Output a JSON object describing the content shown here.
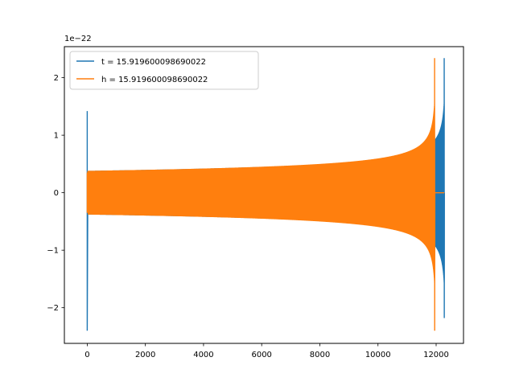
{
  "chart_data": {
    "type": "line",
    "title": "",
    "xlabel": "",
    "ylabel": "",
    "xlim": [
      -786,
      12941
    ],
    "ylim": [
      -2.62,
      2.54
    ],
    "y_offset_label": "1e−22",
    "grid": false,
    "legend_position": "upper-left",
    "x_ticks": [
      0,
      2000,
      4000,
      6000,
      8000,
      10000,
      12000
    ],
    "x_tick_labels": [
      "0",
      "2000",
      "4000",
      "6000",
      "8000",
      "10000",
      "12000"
    ],
    "y_ticks": [
      -2,
      -1,
      0,
      1,
      2
    ],
    "y_tick_labels": [
      "−2",
      "−1",
      "0",
      "1",
      "2"
    ],
    "series": [
      {
        "name": "t = 15.919600098690022",
        "color": "#1f77b4",
        "spike_x": 0,
        "spike_range": [
          -2.4,
          1.42
        ],
        "chirp_start_amplitude": 0.38,
        "chirp_end_x": 12280,
        "peak_range": [
          -2.18,
          2.34
        ],
        "post_merger_value": 0
      },
      {
        "name": "h = 15.919600098690022",
        "color": "#ff7f0e",
        "spike_x": 0,
        "spike_range": [
          -0.35,
          0.35
        ],
        "chirp_start_amplitude": 0.38,
        "chirp_end_x": 11950,
        "peak_range": [
          -2.4,
          2.34
        ],
        "post_merger_value": 0,
        "post_merger_end_x": 12280
      }
    ]
  }
}
